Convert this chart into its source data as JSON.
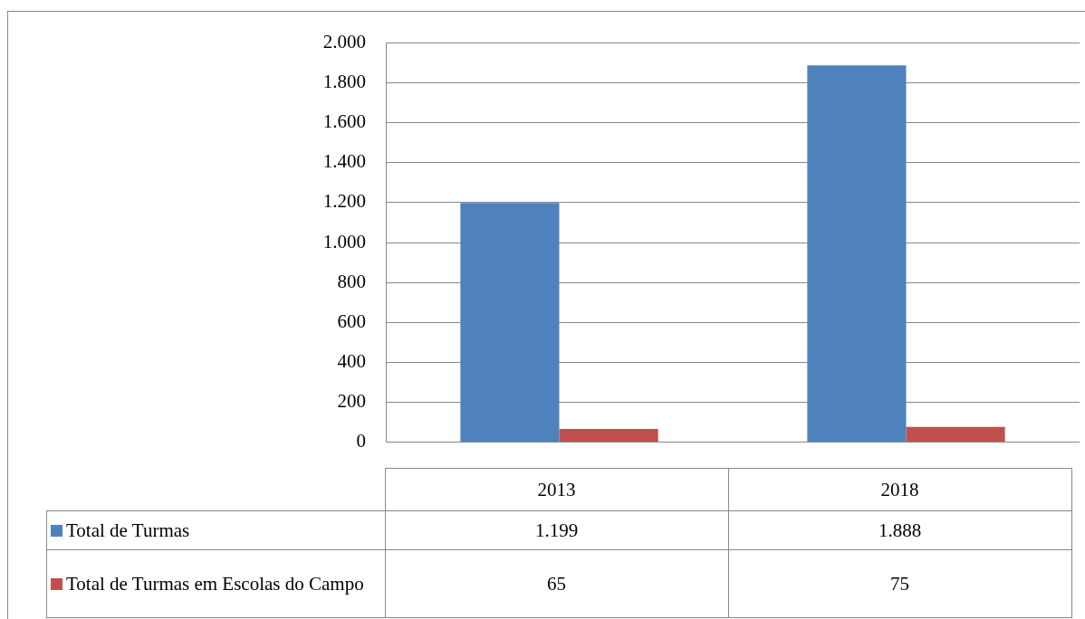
{
  "chart_data": {
    "type": "bar",
    "categories": [
      "2013",
      "2018"
    ],
    "series": [
      {
        "name": "Total de Turmas",
        "color": "#4f81bd",
        "values": [
          1199,
          1888
        ],
        "value_labels": [
          "1.199",
          "1.888"
        ]
      },
      {
        "name": "Total de Turmas em Escolas do Campo",
        "color": "#c0504d",
        "values": [
          65,
          75
        ],
        "value_labels": [
          "65",
          "75"
        ]
      }
    ],
    "ylim": [
      0,
      2000
    ],
    "yticks": [
      0,
      200,
      400,
      600,
      800,
      {
        "value": 1000,
        "label": "1.000"
      },
      {
        "value": 1200,
        "label": "1.200"
      },
      {
        "value": 1400,
        "label": "1.400"
      },
      {
        "value": 1600,
        "label": "1.600"
      },
      {
        "value": 1800,
        "label": "1.800"
      },
      {
        "value": 2000,
        "label": "2.000"
      }
    ],
    "grid": "y",
    "legend": "bottom left"
  }
}
